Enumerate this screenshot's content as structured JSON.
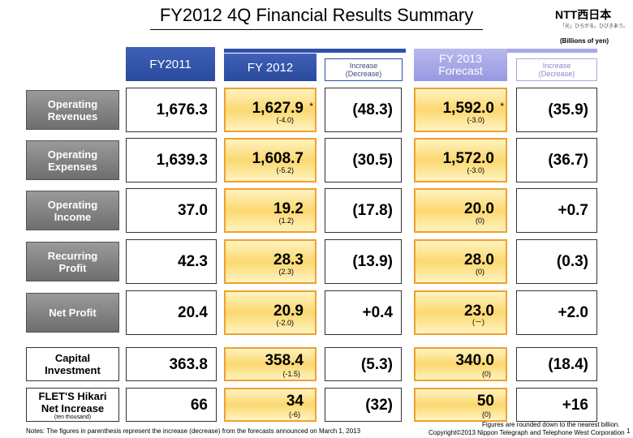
{
  "header": {
    "title": "FY2012 4Q Financial Results Summary",
    "logo": "NTT西日本",
    "tagline": "「光」ひろがる。ひびきあう。",
    "unit": "(Billions of yen)"
  },
  "columns": [
    "FY2011",
    "FY 2012",
    "Increase\n(Decrease)",
    "FY 2013\nForecast",
    "Increase\n(Decrease)"
  ],
  "rows": [
    {
      "label": "Operating\nRevenues",
      "fy2011": "1,676.3",
      "fy2012": "1,627.9",
      "fy2012_note": "(-4.0)",
      "fy2012_mark": "*",
      "fy2012_inc": "(48.3)",
      "fy2013": "1,592.0",
      "fy2013_note": "(-3.0)",
      "fy2013_mark": "*",
      "fy2013_inc": "(35.9)"
    },
    {
      "label": "Operating\nExpenses",
      "fy2011": "1,639.3",
      "fy2012": "1,608.7",
      "fy2012_note": "(-5.2)",
      "fy2012_inc": "(30.5)",
      "fy2013": "1,572.0",
      "fy2013_note": "(-3.0)",
      "fy2013_inc": "(36.7)"
    },
    {
      "label": "Operating\nIncome",
      "fy2011": "37.0",
      "fy2012": "19.2",
      "fy2012_note": "(1.2)",
      "fy2012_inc": "(17.8)",
      "fy2013": "20.0",
      "fy2013_note": "(0)",
      "fy2013_inc": "+0.7"
    },
    {
      "label": "Recurring\nProfit",
      "fy2011": "42.3",
      "fy2012": "28.3",
      "fy2012_note": "(2.3)",
      "fy2012_inc": "(13.9)",
      "fy2013": "28.0",
      "fy2013_note": "(0)",
      "fy2013_inc": "(0.3)"
    },
    {
      "label": "Net Profit",
      "fy2011": "20.4",
      "fy2012": "20.9",
      "fy2012_note": "(-2.0)",
      "fy2012_inc": "+0.4",
      "fy2013": "23.0",
      "fy2013_note": "(－)",
      "fy2013_inc": "+2.0"
    },
    {
      "label": "Capital\nInvestment",
      "fy2011": "363.8",
      "fy2012": "358.4",
      "fy2012_note": "(-1.5)",
      "fy2012_inc": "(5.3)",
      "fy2013": "340.0",
      "fy2013_note": "(0)",
      "fy2013_inc": "(18.4)"
    },
    {
      "label": "FLET'S Hikari\nNet Increase",
      "sublabel": "(ten thousand)",
      "fy2011": "66",
      "fy2012": "34",
      "fy2012_note": "(-6)",
      "fy2012_inc": "(32)",
      "fy2013": "50",
      "fy2013_note": "(0)",
      "fy2013_inc": "+16"
    }
  ],
  "footer": {
    "notes": "Notes: The figures in parenthesis represent the increase (decrease) from the forecasts announced on March 1, 2013",
    "rounding": "Figures are rounded down to the nearest billion.",
    "copyright": "Copyright©2013 Nippon Telegraph and Telephone West Corporation",
    "page": "1"
  }
}
